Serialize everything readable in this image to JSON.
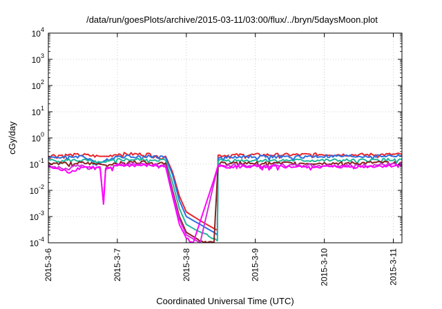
{
  "chart_data": {
    "type": "line",
    "title": "/data/run/goesPlots/archive/2015-03-11/03:00/flux/../bryn/5daysMoon.plot",
    "xlabel": "Coordinated Universal Time (UTC)",
    "ylabel": "cGy/day",
    "y_scale": "log",
    "ylim": [
      0.0001,
      10000
    ],
    "xlim": [
      "2015-03-06",
      "2015-03-11 03:00"
    ],
    "y_ticks": [
      {
        "base": "10",
        "exp": "-4"
      },
      {
        "base": "10",
        "exp": "-3"
      },
      {
        "base": "10",
        "exp": "-2"
      },
      {
        "base": "10",
        "exp": "-1"
      },
      {
        "base": "10",
        "exp": "0"
      },
      {
        "base": "10",
        "exp": "1"
      },
      {
        "base": "10",
        "exp": "2"
      },
      {
        "base": "10",
        "exp": "3"
      },
      {
        "base": "10",
        "exp": "4"
      }
    ],
    "x_ticks": [
      "2015-3-6",
      "2015-3-7",
      "2015-3-8",
      "2015-3-9",
      "2015-3-10",
      "2015-3-11"
    ],
    "grid": true,
    "legend": "none",
    "series": [
      {
        "color": "#e8252b",
        "values": [
          [
            0.0,
            0.22
          ],
          [
            0.5,
            0.23
          ],
          [
            0.75,
            0.2
          ],
          [
            0.85,
            0.2
          ],
          [
            1.0,
            0.25
          ],
          [
            1.5,
            0.24
          ],
          [
            1.7,
            0.2
          ],
          [
            1.8,
            0.05
          ],
          [
            1.9,
            0.006
          ],
          [
            2.0,
            0.0015
          ],
          [
            2.2,
            0.0007
          ],
          [
            2.4,
            0.00035
          ],
          [
            2.45,
            0.0003
          ],
          [
            2.46,
            0.22
          ],
          [
            3.0,
            0.23
          ],
          [
            3.5,
            0.23
          ],
          [
            4.0,
            0.24
          ],
          [
            4.5,
            0.23
          ],
          [
            5.12,
            0.24
          ]
        ]
      },
      {
        "color": "#2b6de0",
        "values": [
          [
            0.0,
            0.18
          ],
          [
            0.5,
            0.2
          ],
          [
            0.75,
            0.11
          ],
          [
            0.85,
            0.15
          ],
          [
            1.0,
            0.2
          ],
          [
            1.5,
            0.2
          ],
          [
            1.7,
            0.18
          ],
          [
            1.8,
            0.04
          ],
          [
            1.9,
            0.004
          ],
          [
            2.0,
            0.001
          ],
          [
            2.2,
            0.0005
          ],
          [
            2.4,
            0.00025
          ],
          [
            2.45,
            0.0002
          ],
          [
            2.46,
            0.18
          ],
          [
            3.0,
            0.2
          ],
          [
            3.5,
            0.19
          ],
          [
            4.0,
            0.2
          ],
          [
            4.5,
            0.2
          ],
          [
            5.12,
            0.21
          ]
        ]
      },
      {
        "color": "#21b79a",
        "values": [
          [
            0.0,
            0.14
          ],
          [
            0.5,
            0.14
          ],
          [
            0.75,
            0.12
          ],
          [
            0.85,
            0.12
          ],
          [
            1.0,
            0.15
          ],
          [
            1.5,
            0.15
          ],
          [
            1.7,
            0.14
          ],
          [
            1.8,
            0.02
          ],
          [
            1.9,
            0.002
          ],
          [
            2.0,
            0.0005
          ],
          [
            2.2,
            0.00025
          ],
          [
            2.4,
            0.00015
          ],
          [
            2.45,
            0.00012
          ],
          [
            2.46,
            0.14
          ],
          [
            3.0,
            0.14
          ],
          [
            3.5,
            0.14
          ],
          [
            4.0,
            0.14
          ],
          [
            4.5,
            0.14
          ],
          [
            5.12,
            0.15
          ]
        ]
      },
      {
        "color": "#8a1f1f",
        "values": [
          [
            0.0,
            0.11
          ],
          [
            0.5,
            0.11
          ],
          [
            0.75,
            0.1
          ],
          [
            0.85,
            0.09
          ],
          [
            1.0,
            0.12
          ],
          [
            1.5,
            0.12
          ],
          [
            1.7,
            0.11
          ],
          [
            1.8,
            0.01
          ],
          [
            1.9,
            0.001
          ],
          [
            2.0,
            0.00025
          ],
          [
            2.2,
            0.00012
          ],
          [
            2.4,
            0.0001
          ],
          [
            2.46,
            0.11
          ],
          [
            3.0,
            0.11
          ],
          [
            3.5,
            0.11
          ],
          [
            4.0,
            0.11
          ],
          [
            4.5,
            0.11
          ],
          [
            5.12,
            0.12
          ]
        ]
      },
      {
        "color": "#d12fd8",
        "values": [
          [
            0.0,
            0.09
          ],
          [
            0.3,
            0.06
          ],
          [
            0.35,
            0.09
          ],
          [
            0.5,
            0.09
          ],
          [
            0.75,
            0.08
          ],
          [
            0.8,
            0.003
          ],
          [
            0.83,
            0.07
          ],
          [
            1.0,
            0.1
          ],
          [
            1.5,
            0.1
          ],
          [
            1.7,
            0.09
          ],
          [
            1.8,
            0.008
          ],
          [
            1.9,
            0.0008
          ],
          [
            2.0,
            0.0002
          ],
          [
            2.2,
            0.0001
          ],
          [
            2.46,
            0.09
          ],
          [
            3.0,
            0.09
          ],
          [
            3.5,
            0.09
          ],
          [
            4.0,
            0.09
          ],
          [
            4.5,
            0.09
          ],
          [
            5.12,
            0.1
          ]
        ]
      },
      {
        "color": "#ff00ff",
        "values": [
          [
            0.0,
            0.08
          ],
          [
            0.3,
            0.05
          ],
          [
            0.5,
            0.08
          ],
          [
            0.75,
            0.07
          ],
          [
            0.8,
            0.003
          ],
          [
            0.83,
            0.06
          ],
          [
            1.0,
            0.09
          ],
          [
            1.5,
            0.09
          ],
          [
            1.7,
            0.08
          ],
          [
            1.8,
            0.006
          ],
          [
            1.9,
            0.0005
          ],
          [
            2.0,
            0.00015
          ],
          [
            2.1,
            0.0001
          ],
          [
            2.46,
            0.08
          ],
          [
            3.0,
            0.08
          ],
          [
            3.5,
            0.08
          ],
          [
            4.0,
            0.08
          ],
          [
            4.5,
            0.08
          ],
          [
            5.12,
            0.09
          ]
        ]
      }
    ]
  }
}
